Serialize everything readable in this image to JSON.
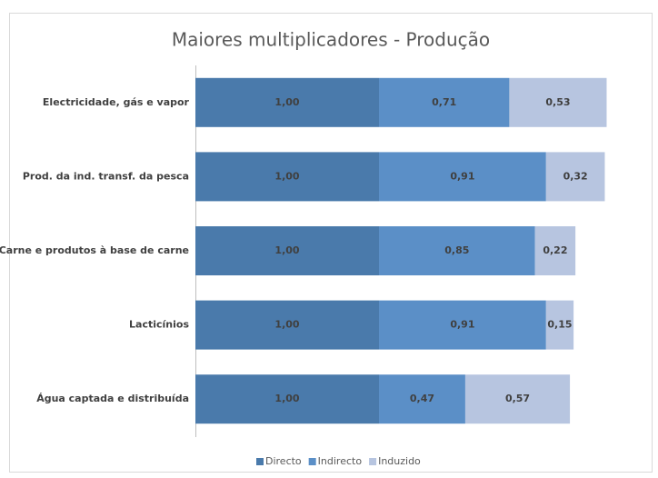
{
  "chart_data": {
    "type": "bar",
    "orientation": "horizontal",
    "stacked": true,
    "title": "Maiores multiplicadores - Produção",
    "categories": [
      "Electricidade, gás e vapor",
      "Prod. da ind. transf. da pesca",
      "Carne e produtos à base de carne",
      "Lacticínios",
      "Água captada e distribuída"
    ],
    "series": [
      {
        "name": "Directo",
        "color": "#4a7aab",
        "values": [
          1.0,
          1.0,
          1.0,
          1.0,
          1.0
        ],
        "value_labels": [
          "1,00",
          "1,00",
          "1,00",
          "1,00",
          "1,00"
        ]
      },
      {
        "name": "Indirecto",
        "color": "#5b8fc7",
        "values": [
          0.71,
          0.91,
          0.85,
          0.91,
          0.47
        ],
        "value_labels": [
          "0,71",
          "0,91",
          "0,85",
          "0,91",
          "0,47"
        ]
      },
      {
        "name": "Induzido",
        "color": "#b7c5e0",
        "values": [
          0.53,
          0.32,
          0.22,
          0.15,
          0.57
        ],
        "value_labels": [
          "0,53",
          "0,32",
          "0,22",
          "0,15",
          "0,57"
        ]
      }
    ],
    "xlim": [
      0,
      2.5
    ],
    "legend": "bottom"
  }
}
